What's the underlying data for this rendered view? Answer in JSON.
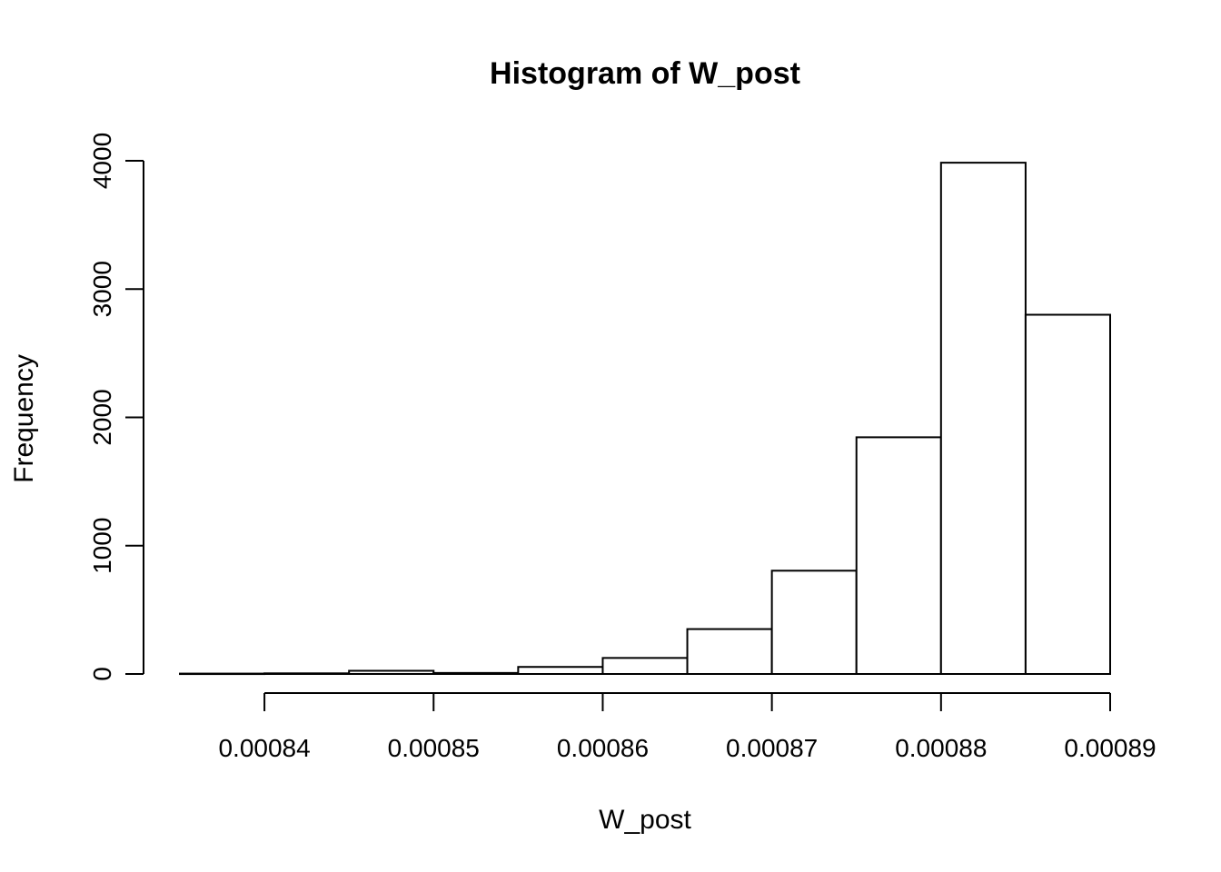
{
  "chart_data": {
    "type": "bar",
    "title": "Histogram of W_post",
    "xlabel": "W_post",
    "ylabel": "Frequency",
    "bin_edges": [
      0.000835,
      0.00084,
      0.000845,
      0.00085,
      0.000855,
      0.00086,
      0.000865,
      0.00087,
      0.000875,
      0.00088,
      0.000885,
      0.00089
    ],
    "values": [
      3,
      5,
      25,
      8,
      55,
      125,
      350,
      805,
      1845,
      3985,
      2800
    ],
    "xlim": [
      0.000835,
      0.00089
    ],
    "ylim": [
      0,
      4000
    ],
    "x_ticks": [
      0.00084,
      0.00085,
      0.00086,
      0.00087,
      0.00088,
      0.00089
    ],
    "x_tick_labels": [
      "0.00084",
      "0.00085",
      "0.00086",
      "0.00087",
      "0.00088",
      "0.00089"
    ],
    "y_ticks": [
      0,
      1000,
      2000,
      3000,
      4000
    ],
    "y_tick_labels": [
      "0",
      "1000",
      "2000",
      "3000",
      "4000"
    ],
    "grid": false,
    "legend": "none"
  }
}
